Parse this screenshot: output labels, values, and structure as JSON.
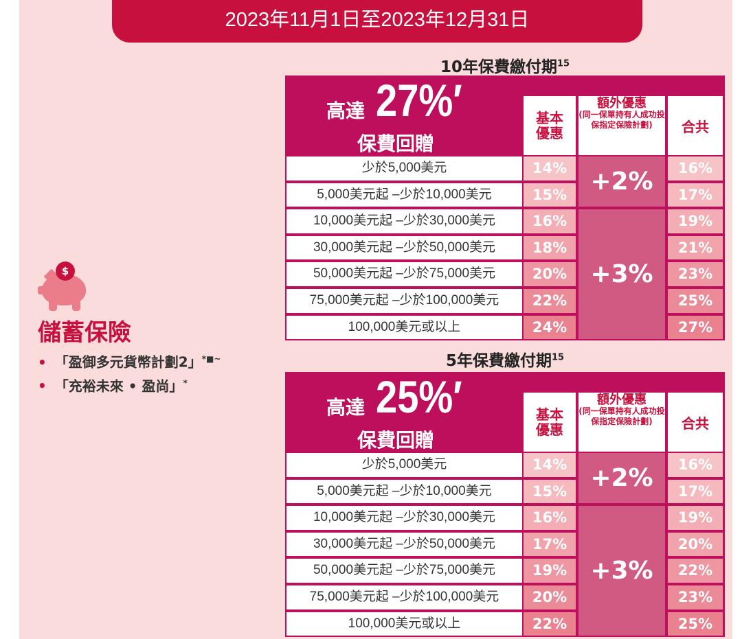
{
  "banner": "2023年11月1日至2023年12月31日",
  "left": {
    "icon": "piggy-bank-icon",
    "title": "儲蓄保險",
    "items": [
      {
        "text": "「盈御多元貨幣計劃2」",
        "sup": "*■~"
      },
      {
        "text": "「充裕未來 • 盈尚」",
        "sup": "*"
      }
    ]
  },
  "colors": {
    "banner": "#c8103e",
    "table": "#be0f5c",
    "extra": "#d05a82",
    "background": "#fadcdc"
  },
  "tables": [
    {
      "title": "10年保費繳付期",
      "title_sup": "15",
      "headline": {
        "prefix": "高達",
        "pct": "27%",
        "mark": "′",
        "suffix": "保費回贈"
      },
      "headers": {
        "base": "基本優惠",
        "extra": "額外優惠",
        "extra_note": "(同一保單持有人成功投保指定保險計劃)",
        "total": "合共"
      },
      "rows": [
        {
          "label": "少於5,000美元",
          "base": "14%",
          "total": "16%"
        },
        {
          "label": "5,000美元起 –少於10,000美元",
          "base": "15%",
          "total": "17%"
        },
        {
          "label": "10,000美元起 –少於30,000美元",
          "base": "16%",
          "total": "19%"
        },
        {
          "label": "30,000美元起 –少於50,000美元",
          "base": "18%",
          "total": "21%"
        },
        {
          "label": "50,000美元起 –少於75,000美元",
          "base": "20%",
          "total": "23%"
        },
        {
          "label": "75,000美元起 –少於100,000美元",
          "base": "22%",
          "total": "25%"
        },
        {
          "label": "100,000美元或以上",
          "base": "24%",
          "total": "27%"
        }
      ],
      "extras": [
        {
          "value": "+2%",
          "rows": 2
        },
        {
          "value": "+3%",
          "rows": 5
        }
      ]
    },
    {
      "title": "5年保費繳付期",
      "title_sup": "15",
      "headline": {
        "prefix": "高達",
        "pct": "25%",
        "mark": "′",
        "suffix": "保費回贈"
      },
      "headers": {
        "base": "基本優惠",
        "extra": "額外優惠",
        "extra_note": "(同一保單持有人成功投保指定保險計劃)",
        "total": "合共"
      },
      "rows": [
        {
          "label": "少於5,000美元",
          "base": "14%",
          "total": "16%"
        },
        {
          "label": "5,000美元起 –少於10,000美元",
          "base": "15%",
          "total": "17%"
        },
        {
          "label": "10,000美元起 –少於30,000美元",
          "base": "16%",
          "total": "19%"
        },
        {
          "label": "30,000美元起 –少於50,000美元",
          "base": "17%",
          "total": "20%"
        },
        {
          "label": "50,000美元起 –少於75,000美元",
          "base": "19%",
          "total": "22%"
        },
        {
          "label": "75,000美元起 –少於100,000美元",
          "base": "20%",
          "total": "23%"
        },
        {
          "label": "100,000美元或以上",
          "base": "22%",
          "total": "25%"
        }
      ],
      "extras": [
        {
          "value": "+2%",
          "rows": 2
        },
        {
          "value": "+3%",
          "rows": 5
        }
      ]
    }
  ]
}
